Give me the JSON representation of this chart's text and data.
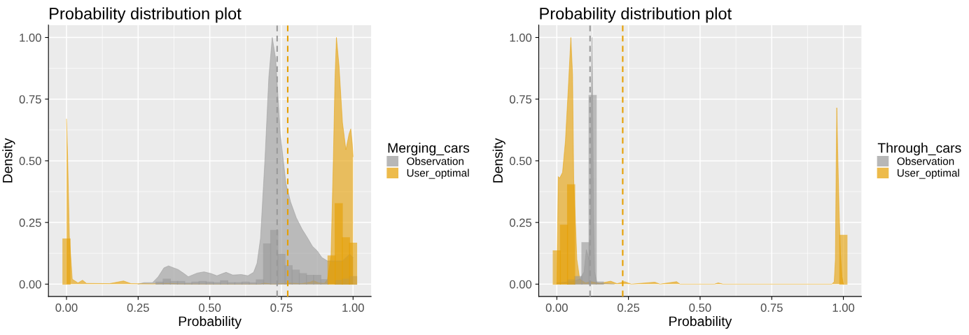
{
  "chart_data": [
    {
      "type": "area",
      "title": "Probability distribution plot",
      "xlabel": "Probability",
      "ylabel": "Density",
      "legend_title": "Merging_cars",
      "legend": "right",
      "grid": true,
      "xlim": [
        -0.063,
        1.063
      ],
      "ylim": [
        -0.05,
        1.05
      ],
      "xticks": [
        {
          "value": 0,
          "label": "0.00"
        },
        {
          "value": 0.25,
          "label": "0.25"
        },
        {
          "value": 0.5,
          "label": "0.50"
        },
        {
          "value": 0.75,
          "label": "0.75"
        },
        {
          "value": 1,
          "label": "1.00"
        }
      ],
      "yticks": [
        {
          "value": 0,
          "label": "0.00"
        },
        {
          "value": 0.25,
          "label": "0.25"
        },
        {
          "value": 0.5,
          "label": "0.50"
        },
        {
          "value": 0.75,
          "label": "0.75"
        },
        {
          "value": 1,
          "label": "1.00"
        }
      ],
      "bins": [
        -0.0125,
        0.0125,
        0.0375,
        0.0625,
        0.0875,
        0.1125,
        0.1375,
        0.1625,
        0.1875,
        0.2125,
        0.2375,
        0.2625,
        0.2875,
        0.3125,
        0.3375,
        0.3625,
        0.3875,
        0.4125,
        0.4375,
        0.4625,
        0.4875,
        0.5125,
        0.5375,
        0.5625,
        0.5875,
        0.6125,
        0.6375,
        0.6625,
        0.6875,
        0.7125,
        0.7375,
        0.7625,
        0.7875,
        0.8125,
        0.8375,
        0.8625,
        0.8875,
        0.9125,
        0.9375,
        0.9625,
        0.9875,
        1.0125
      ],
      "series": [
        {
          "name": "Observation",
          "color": "#999999",
          "x": [
            0.25,
            0.27,
            0.3,
            0.32,
            0.34,
            0.356,
            0.39,
            0.41,
            0.425,
            0.456,
            0.48,
            0.504,
            0.525,
            0.545,
            0.557,
            0.58,
            0.61,
            0.633,
            0.653,
            0.665,
            0.677,
            0.693,
            0.706,
            0.718,
            0.73,
            0.746,
            0.766,
            0.782,
            0.802,
            0.822,
            0.842,
            0.858,
            0.875,
            0.891,
            0.911,
            0.939,
            0.963,
            0.979,
            0.989,
            1.0
          ],
          "values": [
            0.0,
            0.006,
            0.006,
            0.03,
            0.066,
            0.074,
            0.059,
            0.043,
            0.03,
            0.045,
            0.05,
            0.043,
            0.034,
            0.043,
            0.048,
            0.037,
            0.039,
            0.034,
            0.048,
            0.085,
            0.186,
            0.517,
            0.839,
            1.0,
            0.913,
            0.609,
            0.407,
            0.333,
            0.269,
            0.223,
            0.186,
            0.154,
            0.135,
            0.108,
            0.094,
            0.094,
            0.094,
            0.112,
            0.121,
            0.108
          ]
        },
        {
          "name": "User_optimal",
          "color": "#E69F00",
          "x": [
            0.0,
            0.004,
            0.01,
            0.02,
            0.04,
            0.056,
            0.07,
            0.15,
            0.199,
            0.225,
            0.3,
            0.35,
            0.4,
            0.5,
            0.675,
            0.69,
            0.72,
            0.78,
            0.82,
            0.85,
            0.862,
            0.88,
            0.9,
            0.911,
            0.923,
            0.931,
            0.937,
            0.942,
            0.951,
            0.963,
            0.975,
            0.986,
            0.992,
            0.997,
            1.0
          ],
          "values": [
            0.669,
            0.517,
            0.195,
            0.02,
            0.005,
            0.016,
            0.003,
            0.002,
            0.013,
            0.002,
            0.001,
            0.003,
            0.001,
            0.0,
            0.0,
            0.004,
            0.0,
            0.004,
            0.002,
            0.008,
            0.014,
            0.005,
            0.003,
            0.02,
            0.112,
            0.499,
            0.839,
            1.0,
            0.885,
            0.655,
            0.545,
            0.609,
            0.629,
            0.572,
            0.517
          ]
        },
        {
          "type": "histogram",
          "color": "#999999",
          "values": [
            null,
            null,
            null,
            null,
            null,
            null,
            null,
            null,
            null,
            null,
            null,
            null,
            null,
            0.008,
            0.02,
            0.011,
            0.011,
            0.004,
            0.008,
            0.011,
            0.008,
            0.006,
            0.014,
            0.006,
            0.006,
            0.008,
            0.005,
            0.017,
            0.163,
            0.218,
            0.121,
            0.075,
            0.057,
            0.043,
            0.036,
            0.036,
            0.018,
            null,
            0.015,
            0.02,
            0.031
          ]
        },
        {
          "type": "histogram",
          "color": "#E69F00",
          "values": [
            0.183,
            null,
            null,
            null,
            null,
            null,
            null,
            null,
            null,
            null,
            null,
            null,
            null,
            null,
            null,
            null,
            null,
            null,
            null,
            null,
            null,
            null,
            null,
            null,
            null,
            null,
            null,
            null,
            null,
            null,
            null,
            null,
            null,
            null,
            null,
            null,
            null,
            0.114,
            0.326,
            0.188,
            0.166
          ]
        }
      ],
      "ref_lines": [
        {
          "axis": "x",
          "value": 0.735,
          "color": "#999999",
          "line_style": "dashed"
        },
        {
          "axis": "x",
          "value": 0.772,
          "color": "#E69F00",
          "line_style": "dashed"
        }
      ]
    },
    {
      "type": "area",
      "title": "Probability distribution plot",
      "xlabel": "Probability",
      "ylabel": "Density",
      "legend_title": "Through_cars",
      "legend": "right",
      "grid": true,
      "xlim": [
        -0.063,
        1.063
      ],
      "ylim": [
        -0.05,
        1.05
      ],
      "xticks": [
        {
          "value": 0,
          "label": "0.00"
        },
        {
          "value": 0.25,
          "label": "0.25"
        },
        {
          "value": 0.5,
          "label": "0.50"
        },
        {
          "value": 0.75,
          "label": "0.75"
        },
        {
          "value": 1,
          "label": "1.00"
        }
      ],
      "yticks": [
        {
          "value": 0,
          "label": "0.00"
        },
        {
          "value": 0.25,
          "label": "0.25"
        },
        {
          "value": 0.5,
          "label": "0.50"
        },
        {
          "value": 0.75,
          "label": "0.75"
        },
        {
          "value": 1,
          "label": "1.00"
        }
      ],
      "bins": [
        -0.0125,
        0.0125,
        0.0375,
        0.0625,
        0.0875,
        0.1125,
        0.1375,
        0.1625,
        0.1875,
        0.2125,
        0.2375,
        0.2625,
        0.2875,
        0.3125,
        0.3375,
        0.3625,
        0.3875,
        0.4125,
        0.4375,
        0.4625,
        0.4875,
        0.5125,
        0.5375,
        0.5625,
        0.5875,
        0.6125,
        0.6375,
        0.6625,
        0.6875,
        0.7125,
        0.7375,
        0.7625,
        0.7875,
        0.8125,
        0.8375,
        0.8625,
        0.8875,
        0.9125,
        0.9375,
        0.9625,
        0.9875,
        1.0125
      ],
      "series": [
        {
          "name": "Observation",
          "color": "#999999",
          "x": [
            0.0,
            0.05,
            0.08,
            0.095,
            0.103,
            0.108,
            0.112,
            0.118,
            0.121,
            0.123,
            0.125,
            0.128,
            0.132,
            0.14,
            0.2
          ],
          "values": [
            0.005,
            0.01,
            0.02,
            0.05,
            0.14,
            0.12,
            0.1,
            0.3,
            0.8,
            1.0,
            0.8,
            0.3,
            0.05,
            0.005,
            0.0
          ]
        },
        {
          "name": "User_optimal",
          "color": "#E69F00",
          "x": [
            0.0,
            0.005,
            0.01,
            0.02,
            0.03,
            0.04,
            0.049,
            0.055,
            0.059,
            0.065,
            0.07,
            0.08,
            0.1,
            0.12,
            0.15,
            0.188,
            0.21,
            0.237,
            0.26,
            0.342,
            0.36,
            0.418,
            0.43,
            0.55,
            0.563,
            0.58,
            0.96,
            0.968,
            0.972,
            0.975,
            0.977,
            0.98,
            0.985,
            0.99,
            0.995,
            1.0
          ],
          "values": [
            0.0,
            0.436,
            0.43,
            0.453,
            0.58,
            0.793,
            1.0,
            0.85,
            0.425,
            0.25,
            0.1,
            0.02,
            0.005,
            0.01,
            0.003,
            0.012,
            0.002,
            0.01,
            0.0,
            0.008,
            0.0,
            0.01,
            0.0,
            0.0,
            0.005,
            0.0,
            0.0,
            0.01,
            0.1,
            0.5,
            0.715,
            0.55,
            0.3,
            0.12,
            0.03,
            0.0
          ]
        },
        {
          "type": "histogram",
          "color": "#999999",
          "values": [
            null,
            null,
            0.017,
            0.031,
            0.168,
            0.765,
            0.009,
            null,
            null,
            null,
            null,
            null,
            null,
            null,
            null,
            null,
            null,
            null,
            null,
            null,
            null,
            null,
            null,
            null,
            null,
            null,
            null,
            null,
            null,
            null,
            null,
            null,
            null,
            null,
            null,
            null,
            null,
            null,
            null,
            null,
            null
          ]
        },
        {
          "type": "histogram",
          "color": "#E69F00",
          "values": [
            0.135,
            0.239,
            0.403,
            null,
            null,
            null,
            null,
            null,
            null,
            null,
            null,
            null,
            null,
            null,
            null,
            null,
            null,
            null,
            null,
            null,
            null,
            null,
            null,
            null,
            null,
            null,
            null,
            null,
            null,
            null,
            null,
            null,
            null,
            null,
            null,
            null,
            null,
            null,
            null,
            null,
            0.198
          ]
        }
      ],
      "ref_lines": [
        {
          "axis": "x",
          "value": 0.116,
          "color": "#999999",
          "line_style": "dashed"
        },
        {
          "axis": "x",
          "value": 0.23,
          "color": "#E69F00",
          "line_style": "dashed"
        }
      ]
    }
  ]
}
